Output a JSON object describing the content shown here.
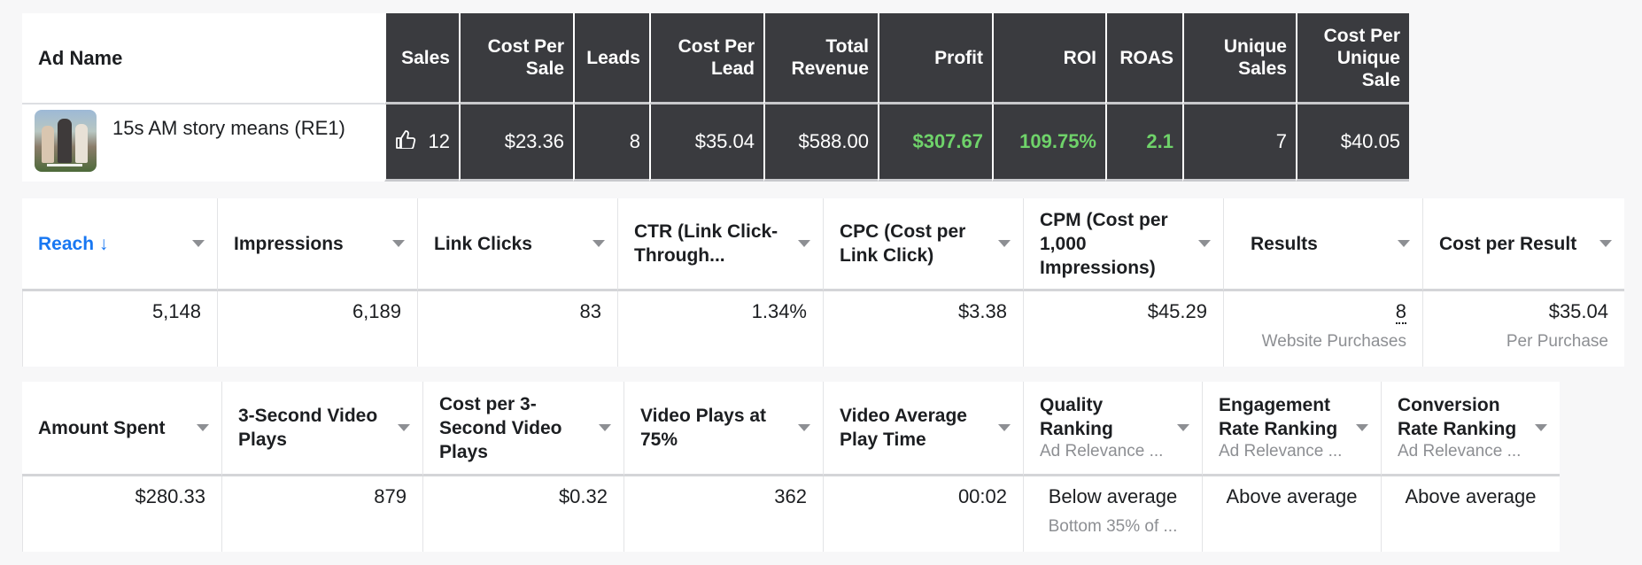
{
  "ad_table": {
    "ad_name_header": "Ad Name",
    "headers": [
      "Sales",
      "Cost Per Sale",
      "Leads",
      "Cost Per Lead",
      "Total Revenue",
      "Profit",
      "ROI",
      "ROAS",
      "Unique Sales",
      "Cost Per Unique Sale"
    ],
    "row": {
      "ad_name": "15s AM story means (RE1)",
      "sales": "12",
      "cost_per_sale": "$23.36",
      "leads": "8",
      "cost_per_lead": "$35.04",
      "total_revenue": "$588.00",
      "profit": "$307.67",
      "roi": "109.75%",
      "roas": "2.1",
      "unique_sales": "7",
      "cost_per_unique_sale": "$40.05"
    },
    "positive_color": "#6fd36a"
  },
  "delivery_table": {
    "headers": [
      "Reach",
      "Impressions",
      "Link Clicks",
      "CTR (Link Click-Through...",
      "CPC (Cost per Link Click)",
      "CPM (Cost per 1,000 Impressions)",
      "Results",
      "Cost per Result"
    ],
    "sorted_column": "Reach",
    "sort_arrow": "↓",
    "sort_color": "#1877f2",
    "row": {
      "reach": "5,148",
      "impressions": "6,189",
      "link_clicks": "83",
      "ctr": "1.34%",
      "cpc": "$3.38",
      "cpm": "$45.29",
      "results": "8",
      "results_label": "Website Purchases",
      "cost_per_result": "$35.04",
      "cost_per_result_label": "Per Purchase"
    }
  },
  "video_table": {
    "headers": [
      "Amount Spent",
      "3-Second Video Plays",
      "Cost per 3-Second Video Plays",
      "Video Plays at 75%",
      "Video Average Play Time",
      "Quality Ranking",
      "Engagement Rate Ranking",
      "Conversion Rate Ranking"
    ],
    "header_subs": {
      "quality": "Ad Relevance ...",
      "engagement": "Ad Relevance ...",
      "conversion": "Ad Relevance ..."
    },
    "row": {
      "amount_spent": "$280.33",
      "three_second_plays": "879",
      "cost_per_three_second": "$0.32",
      "plays_75": "362",
      "avg_play_time": "00:02",
      "quality_ranking": "Below average",
      "quality_ranking_sub": "Bottom 35% of ...",
      "engagement_ranking": "Above average",
      "conversion_ranking": "Above average"
    }
  }
}
